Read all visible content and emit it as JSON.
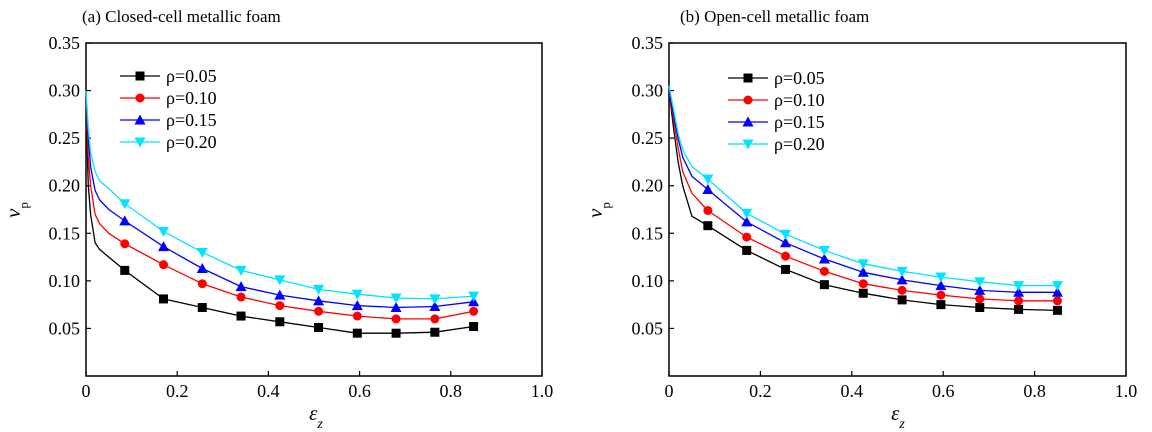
{
  "chart_data": [
    {
      "type": "line",
      "title": "(a) Closed-cell metallic foam",
      "xlabel_main": "ε",
      "xlabel_sub": "z",
      "ylabel_main": "v",
      "ylabel_sub": "p",
      "xlim": [
        0,
        1.0
      ],
      "ylim": [
        0,
        0.35
      ],
      "xticks": [
        0,
        0.2,
        0.4,
        0.6,
        0.8,
        1.0
      ],
      "xtick_labels": [
        "0",
        "0.2",
        "0.4",
        "0.6",
        "0.8",
        "1.0"
      ],
      "yticks": [
        0.05,
        0.1,
        0.15,
        0.2,
        0.25,
        0.3,
        0.35
      ],
      "ytick_labels": [
        "0.05",
        "0.10",
        "0.15",
        "0.20",
        "0.25",
        "0.30",
        "0.35"
      ],
      "legend_position": "top-left",
      "series": [
        {
          "name": "ρ=0.05",
          "color": "#000000",
          "marker": "square",
          "x": [
            0,
            0.005,
            0.01,
            0.02,
            0.03,
            0.05,
            0.085,
            0.17,
            0.255,
            0.34,
            0.425,
            0.51,
            0.595,
            0.68,
            0.765,
            0.85
          ],
          "y": [
            0.28,
            0.2,
            0.17,
            0.14,
            0.133,
            0.125,
            0.111,
            0.081,
            0.072,
            0.063,
            0.057,
            0.051,
            0.045,
            0.045,
            0.046,
            0.052
          ],
          "markers": [
            false,
            false,
            false,
            false,
            false,
            false,
            true,
            true,
            true,
            true,
            true,
            true,
            true,
            true,
            true,
            true
          ]
        },
        {
          "name": "ρ=0.10",
          "color": "#ff0000",
          "marker": "circle",
          "x": [
            0,
            0.005,
            0.01,
            0.02,
            0.03,
            0.05,
            0.085,
            0.17,
            0.255,
            0.34,
            0.425,
            0.51,
            0.595,
            0.68,
            0.765,
            0.85
          ],
          "y": [
            0.29,
            0.23,
            0.2,
            0.17,
            0.16,
            0.15,
            0.139,
            0.117,
            0.097,
            0.083,
            0.074,
            0.068,
            0.063,
            0.06,
            0.06,
            0.068
          ],
          "markers": [
            false,
            false,
            false,
            false,
            false,
            false,
            true,
            true,
            true,
            true,
            true,
            true,
            true,
            true,
            true,
            true
          ]
        },
        {
          "name": "ρ=0.15",
          "color": "#0000ff",
          "marker": "triangle-up",
          "x": [
            0,
            0.005,
            0.01,
            0.02,
            0.03,
            0.05,
            0.085,
            0.17,
            0.255,
            0.34,
            0.425,
            0.51,
            0.595,
            0.68,
            0.765,
            0.85
          ],
          "y": [
            0.295,
            0.25,
            0.22,
            0.195,
            0.185,
            0.175,
            0.163,
            0.136,
            0.113,
            0.094,
            0.085,
            0.079,
            0.074,
            0.072,
            0.073,
            0.078
          ],
          "markers": [
            false,
            false,
            false,
            false,
            false,
            false,
            true,
            true,
            true,
            true,
            true,
            true,
            true,
            true,
            true,
            true
          ]
        },
        {
          "name": "ρ=0.20",
          "color": "#00e5ff",
          "marker": "triangle-down",
          "x": [
            0,
            0.005,
            0.01,
            0.02,
            0.03,
            0.05,
            0.085,
            0.17,
            0.255,
            0.34,
            0.425,
            0.51,
            0.595,
            0.68,
            0.765,
            0.85
          ],
          "y": [
            0.3,
            0.26,
            0.235,
            0.215,
            0.205,
            0.197,
            0.181,
            0.152,
            0.13,
            0.111,
            0.101,
            0.091,
            0.086,
            0.082,
            0.081,
            0.084
          ],
          "markers": [
            false,
            false,
            false,
            false,
            false,
            false,
            true,
            true,
            true,
            true,
            true,
            true,
            true,
            true,
            true,
            true
          ]
        }
      ]
    },
    {
      "type": "line",
      "title": "(b) Open-cell metallic foam",
      "xlabel_main": "ε",
      "xlabel_sub": "z",
      "ylabel_main": "v",
      "ylabel_sub": "p",
      "xlim": [
        0,
        1.0
      ],
      "ylim": [
        0,
        0.35
      ],
      "xticks": [
        0,
        0.2,
        0.4,
        0.6,
        0.8,
        1.0
      ],
      "xtick_labels": [
        "0",
        "0.2",
        "0.4",
        "0.6",
        "0.8",
        "1.0"
      ],
      "yticks": [
        0.05,
        0.1,
        0.15,
        0.2,
        0.25,
        0.3,
        0.35
      ],
      "ytick_labels": [
        "0.05",
        "0.10",
        "0.15",
        "0.20",
        "0.25",
        "0.30",
        "0.35"
      ],
      "legend_position": "top-left",
      "series": [
        {
          "name": "ρ=0.05",
          "color": "#000000",
          "marker": "square",
          "x": [
            0,
            0.01,
            0.02,
            0.03,
            0.05,
            0.085,
            0.17,
            0.255,
            0.34,
            0.425,
            0.51,
            0.595,
            0.68,
            0.765,
            0.85
          ],
          "y": [
            0.3,
            0.26,
            0.225,
            0.2,
            0.168,
            0.158,
            0.132,
            0.112,
            0.096,
            0.087,
            0.08,
            0.075,
            0.072,
            0.07,
            0.069
          ],
          "markers": [
            false,
            false,
            false,
            false,
            false,
            true,
            true,
            true,
            true,
            true,
            true,
            true,
            true,
            true,
            true
          ]
        },
        {
          "name": "ρ=0.10",
          "color": "#ff0000",
          "marker": "circle",
          "x": [
            0,
            0.01,
            0.02,
            0.03,
            0.05,
            0.085,
            0.17,
            0.255,
            0.34,
            0.425,
            0.51,
            0.595,
            0.68,
            0.765,
            0.85
          ],
          "y": [
            0.3,
            0.27,
            0.24,
            0.215,
            0.192,
            0.174,
            0.146,
            0.126,
            0.11,
            0.097,
            0.09,
            0.085,
            0.081,
            0.079,
            0.079
          ],
          "markers": [
            false,
            false,
            false,
            false,
            false,
            true,
            true,
            true,
            true,
            true,
            true,
            true,
            true,
            true,
            true
          ]
        },
        {
          "name": "ρ=0.15",
          "color": "#0000ff",
          "marker": "triangle-up",
          "x": [
            0,
            0.01,
            0.02,
            0.03,
            0.05,
            0.085,
            0.17,
            0.255,
            0.34,
            0.425,
            0.51,
            0.595,
            0.68,
            0.765,
            0.85
          ],
          "y": [
            0.302,
            0.275,
            0.25,
            0.23,
            0.21,
            0.196,
            0.162,
            0.14,
            0.123,
            0.109,
            0.101,
            0.095,
            0.09,
            0.088,
            0.088
          ],
          "markers": [
            false,
            false,
            false,
            false,
            false,
            true,
            true,
            true,
            true,
            true,
            true,
            true,
            true,
            true,
            true
          ]
        },
        {
          "name": "ρ=0.20",
          "color": "#00e5ff",
          "marker": "triangle-down",
          "x": [
            0,
            0.01,
            0.02,
            0.03,
            0.05,
            0.085,
            0.17,
            0.255,
            0.34,
            0.425,
            0.51,
            0.595,
            0.68,
            0.765,
            0.85
          ],
          "y": [
            0.305,
            0.28,
            0.255,
            0.238,
            0.22,
            0.207,
            0.171,
            0.149,
            0.132,
            0.118,
            0.11,
            0.104,
            0.099,
            0.095,
            0.095
          ],
          "markers": [
            false,
            false,
            false,
            false,
            false,
            true,
            true,
            true,
            true,
            true,
            true,
            true,
            true,
            true,
            true
          ]
        }
      ]
    }
  ]
}
